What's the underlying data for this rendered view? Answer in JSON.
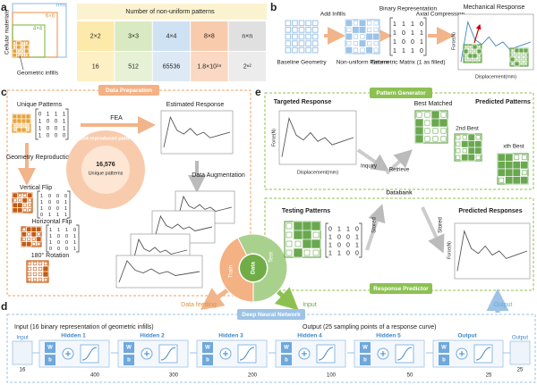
{
  "a": {
    "label": "a",
    "cellular": "Cellular materials",
    "infills": "Geometric infills",
    "sizes": [
      "n×n",
      "6×6",
      "4×4"
    ],
    "table": {
      "title": "Number of non-uniform patterns",
      "rows": [
        [
          "2×2",
          "3×3",
          "4×4",
          "8×8",
          "n×n"
        ],
        [
          "16",
          "512",
          "65536",
          "1.8×10¹⁹",
          "2ⁿ²"
        ]
      ]
    }
  },
  "b": {
    "label": "b",
    "steps": [
      "Add Infills",
      "Binary Representation",
      "Axial Compression",
      "Mechanical Response"
    ],
    "captions": [
      "Baseline Geometry",
      "Non-uniform Pattern",
      "Geometric Matrix (1 as filled)"
    ],
    "matrix": [
      [
        1,
        1,
        1,
        0
      ],
      [
        1,
        0,
        1,
        1
      ],
      [
        1,
        0,
        0,
        1
      ],
      [
        1,
        1,
        1,
        0
      ]
    ],
    "ylabel": "Force(N)",
    "xlabel": "Displacement(mm)"
  },
  "c": {
    "label": "c",
    "title": "Data Preparation",
    "unique": "Unique Patterns",
    "unique_matrix": [
      [
        0,
        1,
        1,
        1
      ],
      [
        1,
        0,
        0,
        1
      ],
      [
        1,
        0,
        0,
        1
      ],
      [
        1,
        0,
        0,
        0
      ]
    ],
    "fea": "FEA",
    "estimated": "Estimated Response",
    "reproduction": "Geometry Reproduction",
    "vflip": "Vertical Flip",
    "vflip_matrix": [
      [
        1,
        0,
        0,
        0
      ],
      [
        1,
        0,
        0,
        1
      ],
      [
        1,
        0,
        0,
        1
      ],
      [
        0,
        1,
        1,
        1
      ]
    ],
    "hflip": "Horizontal Flip",
    "hflip_matrix": [
      [
        1,
        1,
        1,
        0
      ],
      [
        1,
        0,
        0,
        1
      ],
      [
        1,
        0,
        0,
        1
      ],
      [
        0,
        0,
        0,
        1
      ]
    ],
    "rotation": "180° Rotation",
    "augmentation": "Data Augmentation",
    "reproduced": "66,304 reproduced patterns",
    "unique_count": "16,576",
    "unique_label": "Unique patterns",
    "train": "Train",
    "test": "Test",
    "data": "Data",
    "feeding": "Data feeding",
    "input": "Input"
  },
  "d": {
    "label": "d",
    "title": "Deep Neural Network",
    "input_desc": "Input (16 binary representation of geometric infills)",
    "output_desc": "Output (25 sampling points of a response curve)",
    "weight": "W",
    "bias": "b",
    "input_node": {
      "name": "Input",
      "size": "16"
    },
    "layers": [
      {
        "name": "Hidden 1",
        "size": "400"
      },
      {
        "name": "Hidden 2",
        "size": "300"
      },
      {
        "name": "Hidden 3",
        "size": "200"
      },
      {
        "name": "Hidden 4",
        "size": "100"
      },
      {
        "name": "Hidden 5",
        "size": "50"
      },
      {
        "name": "Output",
        "size": "25"
      }
    ],
    "output_node": {
      "name": "Output",
      "size": "25"
    }
  },
  "e": {
    "label": "e",
    "generator": "Pattern Generator",
    "targeted": "Targeted Response",
    "best": "Best Matched",
    "predicted_patterns": "Predicted Patterns",
    "second": "2nd Best",
    "xth": "xth Best",
    "inquiry": "Inquiry",
    "retrieve": "Retrieve",
    "databank": "Databank",
    "predictor": "Response Predictor",
    "testing": "Testing Patterns",
    "stored": "Stored",
    "predicted_responses": "Predicted Responses",
    "testing_matrix": [
      [
        0,
        1,
        1,
        0
      ],
      [
        1,
        0,
        0,
        1
      ],
      [
        1,
        0,
        0,
        1
      ],
      [
        1,
        1,
        0,
        0
      ]
    ],
    "ylabel": "Force(N)",
    "xlabel": "Displacement(mm)",
    "output": "Output"
  }
}
